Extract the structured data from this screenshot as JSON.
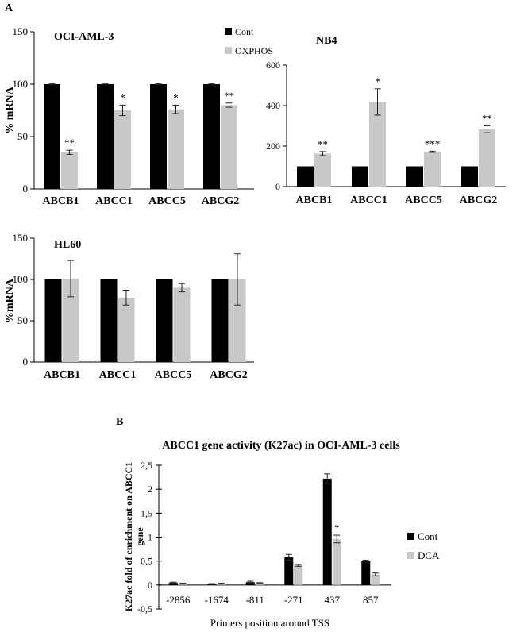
{
  "panel_labels": {
    "a": "A",
    "b": "B"
  },
  "colors": {
    "cont": "#000000",
    "treat": "#c8c8c8",
    "axis": "#000000"
  },
  "chart_data": [
    {
      "id": "oci",
      "type": "bar",
      "title": "OCI-AML-3",
      "ylabel": "% mRNA",
      "ylim": [
        0,
        150
      ],
      "yticks": [
        "0",
        "50",
        "100",
        "150"
      ],
      "categories": [
        "ABCB1",
        "ABCC1",
        "ABCC5",
        "ABCG2"
      ],
      "series": [
        {
          "name": "Cont",
          "values": [
            100,
            100,
            100,
            100
          ],
          "errors": [
            0.5,
            0.5,
            0.5,
            0.5
          ]
        },
        {
          "name": "OXPHOS",
          "values": [
            35,
            75,
            76,
            80
          ],
          "errors": [
            2,
            5,
            4,
            2
          ]
        }
      ],
      "annotations": [
        "**",
        "*",
        "*",
        "**"
      ],
      "legend": "top-right"
    },
    {
      "id": "nb4",
      "type": "bar",
      "title": "NB4",
      "ylabel": "",
      "ylim": [
        0,
        600
      ],
      "yticks": [
        "0",
        "200",
        "400",
        "600"
      ],
      "categories": [
        "ABCB1",
        "ABCC1",
        "ABCC5",
        "ABCG2"
      ],
      "series": [
        {
          "name": "Cont",
          "values": [
            100,
            100,
            100,
            100
          ],
          "errors": [
            0,
            0,
            0,
            0
          ]
        },
        {
          "name": "OXPHOS",
          "values": [
            163,
            418,
            172,
            283
          ],
          "errors": [
            10,
            65,
            3,
            17
          ]
        }
      ],
      "annotations": [
        "**",
        "*",
        "***",
        "**"
      ]
    },
    {
      "id": "hl60",
      "type": "bar",
      "title": "HL60",
      "ylabel": "%mRNA",
      "ylim": [
        0,
        150
      ],
      "yticks": [
        "0",
        "50",
        "100",
        "150"
      ],
      "categories": [
        "ABCB1",
        "ABCC1",
        "ABCC5",
        "ABCG2"
      ],
      "series": [
        {
          "name": "Cont",
          "values": [
            100,
            100,
            100,
            100
          ],
          "errors": [
            0,
            0,
            0,
            0
          ]
        },
        {
          "name": "OXPHOS",
          "values": [
            101,
            78,
            90,
            100
          ],
          "errors": [
            22,
            9,
            5,
            31
          ]
        }
      ],
      "annotations": [
        "",
        "",
        "",
        ""
      ]
    },
    {
      "id": "b",
      "type": "bar",
      "title": "ABCC1 gene activity (K27ac) in OCI-AML-3 cells",
      "xlabel": "Primers position around TSS",
      "ylabel": "K27ac fold of enrichment on ABCC1 gene",
      "ylim": [
        -0.5,
        2.5
      ],
      "yticks": [
        "-0,5",
        "0",
        "0,5",
        "1",
        "1,5",
        "2",
        "2,5"
      ],
      "categories": [
        "-2856",
        "-1674",
        "-811",
        "-271",
        "437",
        "857"
      ],
      "series": [
        {
          "name": "Cont",
          "values": [
            0.05,
            0.02,
            0.06,
            0.58,
            2.22,
            0.5
          ],
          "errors": [
            0.01,
            0.01,
            0.02,
            0.06,
            0.1,
            0.02
          ]
        },
        {
          "name": "DCA",
          "values": [
            0.03,
            0.03,
            0.04,
            0.41,
            0.96,
            0.22
          ],
          "errors": [
            0.01,
            0.01,
            0.01,
            0.02,
            0.08,
            0.03
          ]
        }
      ],
      "annotations": [
        "",
        "",
        "",
        "",
        "*",
        ""
      ],
      "legend": "right"
    }
  ]
}
